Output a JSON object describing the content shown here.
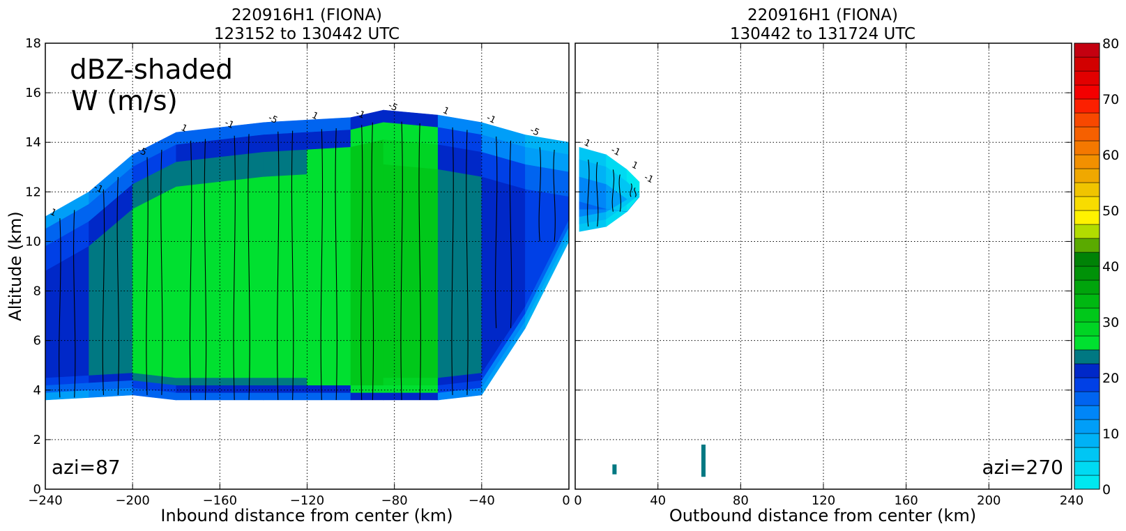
{
  "figure": {
    "left_panel": {
      "title_line1": "220916H1 (FIONA)",
      "title_line2": "123152 to 130442 UTC",
      "annotation_line1": "dBZ-shaded",
      "annotation_line2": "W (m/s)",
      "azimuth_label": "azi=87",
      "xlabel": "Inbound distance from center (km)",
      "ylabel": "Altitude (km)"
    },
    "right_panel": {
      "title_line1": "220916H1 (FIONA)",
      "title_line2": "130442 to 131724 UTC",
      "azimuth_label": "azi=270",
      "xlabel": "Outbound distance from center (km)"
    }
  },
  "chart_data": [
    {
      "type": "heatmap",
      "title": "220916H1 (FIONA) 123152 to 130442 UTC",
      "xlabel": "Inbound distance from center (km)",
      "ylabel": "Altitude (km)",
      "xlim": [
        -240,
        0
      ],
      "ylim": [
        0,
        18
      ],
      "xticks": [
        -240,
        -200,
        -160,
        -120,
        -80,
        -40,
        0
      ],
      "yticks": [
        0,
        2,
        4,
        6,
        8,
        10,
        12,
        14,
        16,
        18
      ],
      "grid": true,
      "annotations": [
        "dBZ-shaded",
        "W (m/s)",
        "azi=87"
      ],
      "contour_labels": [
        "1",
        "-1",
        "-5"
      ],
      "echo_columns": [
        {
          "x": -240,
          "top": 11,
          "bottom": 3.6,
          "dbz": 18
        },
        {
          "x": -220,
          "top": 12,
          "bottom": 3.7,
          "dbz": 20
        },
        {
          "x": -200,
          "top": 13.5,
          "bottom": 3.8,
          "dbz": 22
        },
        {
          "x": -180,
          "top": 14.4,
          "bottom": 3.6,
          "dbz": 24
        },
        {
          "x": -160,
          "top": 14.6,
          "bottom": 3.6,
          "dbz": 24
        },
        {
          "x": -140,
          "top": 14.8,
          "bottom": 3.6,
          "dbz": 24
        },
        {
          "x": -120,
          "top": 14.9,
          "bottom": 3.6,
          "dbz": 24
        },
        {
          "x": -100,
          "top": 15.0,
          "bottom": 3.6,
          "dbz": 26
        },
        {
          "x": -85,
          "top": 15.3,
          "bottom": 3.6,
          "dbz": 34
        },
        {
          "x": -60,
          "top": 15.1,
          "bottom": 3.6,
          "dbz": 24
        },
        {
          "x": -40,
          "top": 14.8,
          "bottom": 3.8,
          "dbz": 20
        },
        {
          "x": -20,
          "top": 14.3,
          "bottom": 6.5,
          "dbz": 17
        },
        {
          "x": 0,
          "top": 14.0,
          "bottom": 10.0,
          "dbz": 15
        }
      ]
    },
    {
      "type": "heatmap",
      "title": "220916H1 (FIONA) 130442 to 131724 UTC",
      "xlabel": "Outbound distance from center (km)",
      "ylabel": "",
      "xlim": [
        0,
        240
      ],
      "ylim": [
        0,
        18
      ],
      "xticks": [
        0,
        40,
        80,
        120,
        160,
        200,
        240
      ],
      "yticks": [
        0,
        2,
        4,
        6,
        8,
        10,
        12,
        14,
        16,
        18
      ],
      "grid": true,
      "annotations": [
        "azi=270"
      ],
      "contour_labels": [
        "1",
        "-1"
      ],
      "echo_columns": [
        {
          "x": 2,
          "top": 13.8,
          "bottom": 10.4,
          "dbz": 14
        },
        {
          "x": 15,
          "top": 13.5,
          "bottom": 10.6,
          "dbz": 12
        },
        {
          "x": 25,
          "top": 12.9,
          "bottom": 11.2,
          "dbz": 10
        },
        {
          "x": 31,
          "top": 12.4,
          "bottom": 11.8,
          "dbz": 8
        }
      ],
      "echo_speckles": [
        {
          "x": 19,
          "bottom": 0.6,
          "top": 1.0,
          "dbz": 24
        },
        {
          "x": 62,
          "bottom": 0.5,
          "top": 1.8,
          "dbz": 24
        }
      ]
    },
    {
      "type": "bar",
      "title": "",
      "orientation": "vertical colorbar",
      "ylim": [
        0,
        80
      ],
      "ticks": [
        0,
        10,
        20,
        30,
        40,
        50,
        60,
        70,
        80
      ],
      "bin_width": 2.5,
      "colors": [
        "#00e8f0",
        "#00daf2",
        "#00c6f4",
        "#00b2f6",
        "#009ef8",
        "#0086f8",
        "#0064f0",
        "#0040e6",
        "#0028c8",
        "#007882",
        "#00e030",
        "#00d424",
        "#00c81a",
        "#00b812",
        "#00a40c",
        "#009208",
        "#008206",
        "#5aaa00",
        "#b2dc00",
        "#fff200",
        "#f8dc00",
        "#f0c400",
        "#f0a800",
        "#f29000",
        "#f47800",
        "#f66000",
        "#f84800",
        "#fc2000",
        "#f40000",
        "#e20000",
        "#d20000",
        "#c40010",
        "#cc0050",
        "#e0009a",
        "#ee00ee",
        "#dc22f0",
        "#c040e0",
        "#a24cc4",
        "#7a44a2",
        "#2c1e3c",
        "#000000"
      ]
    }
  ]
}
